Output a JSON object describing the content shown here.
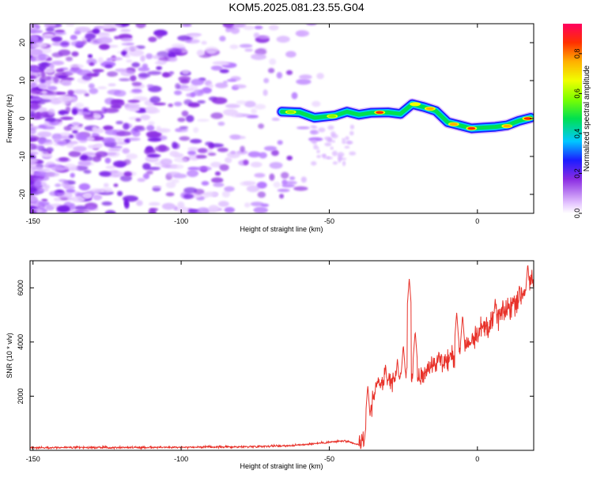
{
  "title": "KOM5.2025.081.23.55.G04",
  "colors": {
    "snr_line": "#e8322a",
    "axis": "#000000",
    "blob": "#8a2be2"
  },
  "chart_data": [
    {
      "type": "heatmap",
      "xlabel": "Height of straight line (km)",
      "ylabel": "Frequency (Hz)",
      "xlim": [
        -151,
        19
      ],
      "ylim": [
        -25,
        25
      ],
      "x_ticks": [
        -150,
        -100,
        -50,
        0
      ],
      "x_tick_labels": [
        "-150",
        "-100",
        "-50",
        "0"
      ],
      "y_ticks": [
        20,
        10,
        0,
        -10,
        -20
      ],
      "y_tick_labels": [
        "20",
        "10",
        "0",
        "-10",
        "-20"
      ],
      "colorbar": {
        "label": "Normalized spectral amplitude",
        "range": [
          0,
          0.95
        ],
        "ticks": [
          0.0,
          0.2,
          0.4,
          0.6,
          0.8
        ],
        "tick_labels": [
          "0.0",
          "0.2",
          "0.4",
          "0.6",
          "0.8"
        ]
      },
      "ridge": [
        {
          "x": -66,
          "f": 1.8
        },
        {
          "x": -60,
          "f": 1.6
        },
        {
          "x": -55,
          "f": 0.2
        },
        {
          "x": -48,
          "f": 0.8
        },
        {
          "x": -44,
          "f": 1.8
        },
        {
          "x": -40,
          "f": 1.0
        },
        {
          "x": -36,
          "f": 1.5
        },
        {
          "x": -30,
          "f": 1.6
        },
        {
          "x": -26,
          "f": 1.2
        },
        {
          "x": -22,
          "f": 3.8
        },
        {
          "x": -18,
          "f": 3.0
        },
        {
          "x": -14,
          "f": 2.0
        },
        {
          "x": -10,
          "f": -1.0
        },
        {
          "x": -6,
          "f": -1.8
        },
        {
          "x": -2,
          "f": -2.6
        },
        {
          "x": 2,
          "f": -2.4
        },
        {
          "x": 6,
          "f": -2.2
        },
        {
          "x": 10,
          "f": -1.8
        },
        {
          "x": 14,
          "f": -0.6
        },
        {
          "x": 18,
          "f": 0.2
        }
      ],
      "ridge_peaks": [
        {
          "x": -63,
          "f": 1.7,
          "amp": 0.55
        },
        {
          "x": -49,
          "f": 0.6,
          "amp": 0.55
        },
        {
          "x": -33,
          "f": 1.6,
          "amp": 0.95
        },
        {
          "x": -21,
          "f": 3.8,
          "amp": 0.7
        },
        {
          "x": -16,
          "f": 2.6,
          "amp": 0.8
        },
        {
          "x": -8,
          "f": -1.5,
          "amp": 0.8
        },
        {
          "x": -2,
          "f": -2.6,
          "amp": 0.9
        },
        {
          "x": 10,
          "f": -2.0,
          "amp": 0.85
        },
        {
          "x": 17,
          "f": 0.0,
          "amp": 0.95
        }
      ]
    },
    {
      "type": "line",
      "xlabel": "Height of straight line (km)",
      "ylabel": "SNR (10 * v/v)",
      "xlim": [
        -151,
        19
      ],
      "ylim": [
        0,
        7000
      ],
      "x_ticks": [
        -150,
        -100,
        -50,
        0
      ],
      "x_tick_labels": [
        "-150",
        "-100",
        "-50",
        "0"
      ],
      "y_ticks": [
        2000,
        4000,
        6000
      ],
      "y_tick_labels": [
        "2000",
        "4000",
        "6000"
      ],
      "series": [
        {
          "knots": [
            [
              -151,
              100
            ],
            [
              -110,
              110
            ],
            [
              -80,
              130
            ],
            [
              -62,
              180
            ],
            [
              -50,
              300
            ],
            [
              -45,
              350
            ],
            [
              -40,
              200
            ],
            [
              -38,
              500
            ],
            [
              -36,
              1500
            ],
            [
              -34,
              2500
            ],
            [
              -30,
              2600
            ],
            [
              -24,
              2800
            ],
            [
              -20,
              2600
            ],
            [
              -15,
              3200
            ],
            [
              -10,
              3300
            ],
            [
              -5,
              3700
            ],
            [
              0,
              4400
            ],
            [
              5,
              4700
            ],
            [
              10,
              5200
            ],
            [
              15,
              5800
            ],
            [
              19,
              6200
            ]
          ],
          "spikes": [
            [
              -37,
              2400
            ],
            [
              -31,
              3200
            ],
            [
              -27,
              3400
            ],
            [
              -25,
              3900
            ],
            [
              -23,
              6350
            ],
            [
              -21,
              4400
            ],
            [
              -13,
              3700
            ],
            [
              -7,
              5100
            ],
            [
              -5,
              5000
            ],
            [
              6,
              5600
            ],
            [
              17,
              6900
            ]
          ]
        }
      ]
    }
  ]
}
